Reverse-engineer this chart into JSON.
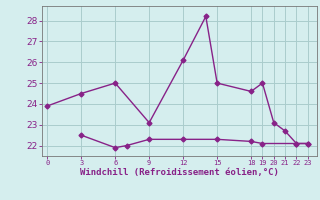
{
  "xlabel": "Windchill (Refroidissement éolien,°C)",
  "line1_x": [
    0,
    3,
    6,
    9,
    12,
    14,
    15,
    18,
    19,
    20,
    21,
    22,
    23
  ],
  "line1_y": [
    23.9,
    24.5,
    25.0,
    23.1,
    26.1,
    28.2,
    25.0,
    24.6,
    25.0,
    23.1,
    22.7,
    22.1,
    22.1
  ],
  "line2_x": [
    3,
    6,
    7,
    9,
    12,
    15,
    18,
    19,
    22,
    23
  ],
  "line2_y": [
    22.5,
    21.9,
    22.0,
    22.3,
    22.3,
    22.3,
    22.2,
    22.1,
    22.1,
    22.1
  ],
  "line_color": "#882288",
  "bg_color": "#d5eeee",
  "grid_color": "#aacccc",
  "ylim": [
    21.5,
    28.7
  ],
  "xlim": [
    -0.5,
    23.8
  ],
  "yticks": [
    22,
    23,
    24,
    25,
    26,
    27,
    28
  ],
  "xtick_positions": [
    0,
    3,
    6,
    9,
    12,
    15,
    18,
    19,
    20,
    21,
    22,
    23
  ],
  "xtick_labels": [
    "0",
    "3",
    "6",
    "9",
    "12",
    "15",
    "18",
    "19",
    "20",
    "21",
    "22",
    "23"
  ],
  "marker": "D",
  "markersize": 2.5,
  "linewidth": 1.0
}
